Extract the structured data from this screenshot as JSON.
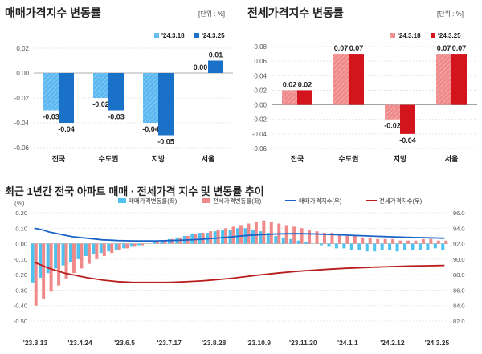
{
  "chart_data": [
    {
      "type": "bar",
      "title": "매매가격지수 변동률",
      "unit": "[단위 : %]",
      "categories": [
        "전국",
        "수도권",
        "지방",
        "서울"
      ],
      "series": [
        {
          "name": "'24.3.18",
          "values": [
            -0.03,
            -0.02,
            -0.04,
            0.0
          ],
          "color": "#5bb8f0"
        },
        {
          "name": "'24.3.25",
          "values": [
            -0.04,
            -0.03,
            -0.05,
            0.01
          ],
          "color": "#1a72c8"
        }
      ],
      "ylim": [
        -0.06,
        0.02
      ],
      "yticks": [
        "0.02",
        "0.00",
        "-0.02",
        "-0.04",
        "-0.06"
      ],
      "legend": "top-right",
      "grid": true
    },
    {
      "type": "bar",
      "title": "전세가격지수 변동률",
      "unit": "[단위 : %]",
      "categories": [
        "전국",
        "수도권",
        "지방",
        "서울"
      ],
      "series": [
        {
          "name": "'24.3.18",
          "values": [
            0.02,
            0.07,
            -0.02,
            0.07
          ],
          "color": "#f08a8a"
        },
        {
          "name": "'24.3.25",
          "values": [
            0.02,
            0.07,
            -0.04,
            0.07
          ],
          "color": "#d4141c"
        }
      ],
      "ylim": [
        -0.06,
        0.08
      ],
      "yticks": [
        "0.08",
        "0.06",
        "0.04",
        "0.02",
        "0.00",
        "-0.02",
        "-0.04",
        "-0.06"
      ],
      "legend": "top-right",
      "grid": true
    },
    {
      "type": "bar+line",
      "title": "최근 1년간 전국 아파트 매매 · 전세가격 지수 및 변동률 추이",
      "ylabel_left": "(%)",
      "left_ylim": [
        -0.5,
        0.2
      ],
      "left_yticks": [
        "0.20",
        "0.10",
        "0.00",
        "-0.10",
        "-0.20",
        "-0.30",
        "-0.40",
        "-0.50"
      ],
      "right_ylim": [
        82.0,
        96.0
      ],
      "right_yticks": [
        "96.0",
        "94.0",
        "92.0",
        "90.0",
        "88.0",
        "86.0",
        "84.0",
        "82.0"
      ],
      "x_ticks": [
        "'23.3.13",
        "'23.4.24",
        "'23.6.5",
        "'23.7.17",
        "'23.8.28",
        "'23.10.9",
        "'23.11.20",
        "'24.1.1",
        "'24.2.12",
        "'24.3.25"
      ],
      "series": [
        {
          "name": "매매가격변동률(좌)",
          "kind": "bar",
          "color": "#4fc1ee",
          "values": [
            -0.25,
            -0.22,
            -0.19,
            -0.16,
            -0.14,
            -0.12,
            -0.1,
            -0.08,
            -0.07,
            -0.06,
            -0.05,
            -0.04,
            -0.03,
            -0.02,
            -0.01,
            0.0,
            0.01,
            0.02,
            0.03,
            0.04,
            0.05,
            0.06,
            0.07,
            0.07,
            0.08,
            0.09,
            0.09,
            0.1,
            0.1,
            0.09,
            0.08,
            0.07,
            0.05,
            0.04,
            0.03,
            0.02,
            0.01,
            0.0,
            -0.01,
            -0.02,
            -0.03,
            -0.03,
            -0.04,
            -0.04,
            -0.05,
            -0.05,
            -0.04,
            -0.04,
            -0.05,
            -0.04,
            -0.04,
            -0.04,
            -0.04,
            -0.03,
            -0.04
          ]
        },
        {
          "name": "전세가격변동률(좌)",
          "kind": "bar",
          "color": "#f08a8a",
          "values": [
            -0.4,
            -0.36,
            -0.31,
            -0.27,
            -0.23,
            -0.19,
            -0.16,
            -0.13,
            -0.1,
            -0.08,
            -0.06,
            -0.04,
            -0.03,
            -0.02,
            -0.01,
            0.0,
            0.01,
            0.02,
            0.03,
            0.04,
            0.05,
            0.06,
            0.07,
            0.08,
            0.09,
            0.1,
            0.11,
            0.12,
            0.13,
            0.14,
            0.15,
            0.14,
            0.13,
            0.12,
            0.11,
            0.1,
            0.09,
            0.08,
            0.07,
            0.07,
            0.06,
            0.05,
            0.05,
            0.04,
            0.04,
            0.03,
            0.03,
            0.03,
            0.02,
            0.02,
            0.02,
            0.03,
            0.03,
            0.02,
            0.02
          ]
        },
        {
          "name": "매매가격지수(우)",
          "kind": "line",
          "color": "#1a64c8",
          "values": [
            94.0,
            93.8,
            93.5,
            93.3,
            93.1,
            92.9,
            92.8,
            92.7,
            92.6,
            92.5,
            92.45,
            92.4,
            92.38,
            92.35,
            92.35,
            92.35,
            92.36,
            92.38,
            92.4,
            92.43,
            92.47,
            92.52,
            92.58,
            92.65,
            92.72,
            92.8,
            92.88,
            92.97,
            93.05,
            93.12,
            93.18,
            93.22,
            93.25,
            93.27,
            93.28,
            93.28,
            93.27,
            93.25,
            93.22,
            93.19,
            93.15,
            93.11,
            93.07,
            93.03,
            92.99,
            92.95,
            92.92,
            92.89,
            92.86,
            92.83,
            92.8,
            92.78,
            92.75,
            92.73,
            92.7
          ]
        },
        {
          "name": "전세가격지수(우)",
          "kind": "line",
          "color": "#b81c1c",
          "values": [
            89.6,
            89.2,
            88.8,
            88.5,
            88.2,
            88.0,
            87.8,
            87.6,
            87.45,
            87.3,
            87.2,
            87.1,
            87.05,
            87.0,
            87.0,
            87.0,
            87.0,
            87.0,
            87.02,
            87.05,
            87.09,
            87.14,
            87.2,
            87.27,
            87.35,
            87.44,
            87.54,
            87.65,
            87.77,
            87.89,
            88.0,
            88.1,
            88.2,
            88.3,
            88.38,
            88.46,
            88.53,
            88.6,
            88.66,
            88.72,
            88.77,
            88.82,
            88.86,
            88.9,
            88.94,
            88.98,
            89.01,
            89.04,
            89.07,
            89.1,
            89.12,
            89.14,
            89.16,
            89.18,
            89.2
          ]
        }
      ],
      "legend": "top",
      "grid": true
    }
  ]
}
